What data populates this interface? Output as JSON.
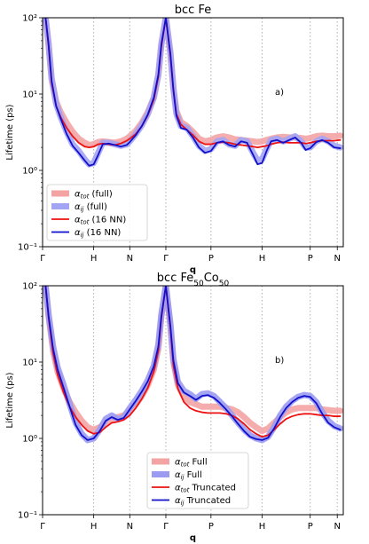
{
  "chart_data": [
    {
      "type": "line",
      "title": "bcc Fe",
      "annotation": "a)",
      "xlabel": "q",
      "ylabel": "Lifetime (ps)",
      "yscale": "log",
      "ylim": [
        0.1,
        100
      ],
      "y_tick_labels": [
        "10⁻¹",
        "10⁰",
        "10¹",
        "10²"
      ],
      "y_tick_values": [
        0.1,
        1,
        10,
        100
      ],
      "xlim": [
        0,
        10
      ],
      "x_ticks": [
        {
          "label": "Γ",
          "x": 0
        },
        {
          "label": "H",
          "x": 1.7
        },
        {
          "label": "N",
          "x": 2.9
        },
        {
          "label": "Γ",
          "x": 4.1
        },
        {
          "label": "P",
          "x": 5.6
        },
        {
          "label": "H",
          "x": 7.3
        },
        {
          "label": "P",
          "x": 8.9
        },
        {
          "label": "N",
          "x": 9.8
        }
      ],
      "grid": "vertical-dotted",
      "legend_position": "lower-left",
      "series": [
        {
          "name": "αtot (full)",
          "name_main": "α",
          "name_sub": "tot",
          "name_suffix": " (full)",
          "color": "#f4a3a3",
          "style": "thick",
          "x": [
            0.1,
            0.2,
            0.3,
            0.45,
            0.6,
            0.8,
            1.0,
            1.2,
            1.4,
            1.55,
            1.7,
            1.85,
            2.0,
            2.2,
            2.4,
            2.6,
            2.8,
            2.9,
            3.1,
            3.3,
            3.5,
            3.7,
            3.85,
            3.95,
            4.1,
            4.25,
            4.35,
            4.45,
            4.6,
            4.8,
            5.0,
            5.2,
            5.4,
            5.6,
            5.8,
            6.0,
            6.2,
            6.4,
            6.6,
            6.8,
            7.0,
            7.15,
            7.3,
            7.45,
            7.6,
            7.8,
            8.0,
            8.2,
            8.4,
            8.6,
            8.75,
            8.9,
            9.1,
            9.3,
            9.5,
            9.7,
            9.9
          ],
          "y": [
            100,
            45,
            16,
            8,
            5.8,
            4.2,
            3.2,
            2.6,
            2.3,
            2.15,
            2.2,
            2.35,
            2.4,
            2.35,
            2.3,
            2.4,
            2.6,
            2.8,
            3.3,
            4.2,
            5.8,
            9,
            18,
            45,
            100,
            35,
            12,
            6,
            4.3,
            3.8,
            3.2,
            2.6,
            2.4,
            2.5,
            2.7,
            2.8,
            2.7,
            2.55,
            2.5,
            2.45,
            2.4,
            2.35,
            2.4,
            2.5,
            2.6,
            2.7,
            2.75,
            2.7,
            2.7,
            2.65,
            2.6,
            2.65,
            2.8,
            2.85,
            2.8,
            2.8,
            2.85
          ]
        },
        {
          "name": "αij (full)",
          "name_main": "α",
          "name_sub": "ij",
          "name_suffix": " (full)",
          "color": "#a4a4f5",
          "style": "thick",
          "x": [
            0.1,
            0.2,
            0.3,
            0.45,
            0.6,
            0.8,
            1.0,
            1.2,
            1.4,
            1.55,
            1.7,
            1.85,
            2.0,
            2.2,
            2.4,
            2.6,
            2.8,
            2.9,
            3.1,
            3.3,
            3.5,
            3.7,
            3.85,
            3.95,
            4.1,
            4.25,
            4.35,
            4.45,
            4.6,
            4.8,
            5.0,
            5.2,
            5.4,
            5.6,
            5.8,
            6.0,
            6.2,
            6.4,
            6.6,
            6.8,
            7.0,
            7.15,
            7.3,
            7.45,
            7.6,
            7.8,
            8.0,
            8.2,
            8.4,
            8.6,
            8.75,
            8.9,
            9.1,
            9.3,
            9.5,
            9.7,
            9.9
          ],
          "y": [
            100,
            45,
            16,
            7.5,
            5,
            3.2,
            2.2,
            1.8,
            1.4,
            1.2,
            1.25,
            1.7,
            2.3,
            2.3,
            2.2,
            2.1,
            2.2,
            2.4,
            3,
            3.9,
            5.5,
            9,
            18,
            45,
            100,
            35,
            12,
            5.5,
            3.8,
            3.6,
            2.8,
            2.1,
            1.8,
            1.9,
            2.4,
            2.5,
            2.2,
            2.1,
            2.5,
            2.4,
            1.7,
            1.35,
            1.4,
            1.9,
            2.5,
            2.6,
            2.4,
            2.6,
            2.8,
            2.4,
            2,
            2.0,
            2.4,
            2.6,
            2.4,
            2.1,
            2.0
          ]
        },
        {
          "name": "αtot (16 NN)",
          "name_main": "α",
          "name_sub": "tot",
          "name_suffix": " (16 NN)",
          "color": "#ee1111",
          "style": "thin",
          "x": [
            0.1,
            0.2,
            0.3,
            0.45,
            0.6,
            0.8,
            1.0,
            1.2,
            1.4,
            1.55,
            1.7,
            1.85,
            2.0,
            2.2,
            2.4,
            2.6,
            2.8,
            2.9,
            3.1,
            3.3,
            3.5,
            3.7,
            3.85,
            3.95,
            4.1,
            4.25,
            4.35,
            4.45,
            4.6,
            4.8,
            5.0,
            5.2,
            5.4,
            5.6,
            5.8,
            6.0,
            6.2,
            6.4,
            6.6,
            6.8,
            7.0,
            7.15,
            7.3,
            7.45,
            7.6,
            7.8,
            8.0,
            8.2,
            8.4,
            8.6,
            8.75,
            8.9,
            9.1,
            9.3,
            9.5,
            9.7,
            9.9
          ],
          "y": [
            100,
            42,
            14,
            7,
            5,
            3.6,
            2.8,
            2.3,
            2.05,
            2.0,
            2.05,
            2.2,
            2.25,
            2.2,
            2.15,
            2.25,
            2.45,
            2.6,
            3.0,
            3.8,
            5.3,
            8.5,
            17,
            42,
            100,
            32,
            11,
            5.5,
            4.0,
            3.4,
            2.9,
            2.4,
            2.2,
            2.2,
            2.3,
            2.35,
            2.3,
            2.2,
            2.15,
            2.1,
            2.05,
            2.0,
            2.05,
            2.1,
            2.2,
            2.3,
            2.35,
            2.3,
            2.3,
            2.3,
            2.25,
            2.3,
            2.4,
            2.45,
            2.45,
            2.45,
            2.5
          ]
        },
        {
          "name": "αij (16 NN)",
          "name_main": "α",
          "name_sub": "ij",
          "name_suffix": " (16 NN)",
          "color": "#1010cc",
          "style": "thin",
          "x": [
            0.1,
            0.2,
            0.3,
            0.45,
            0.6,
            0.8,
            1.0,
            1.2,
            1.4,
            1.55,
            1.7,
            1.85,
            2.0,
            2.2,
            2.4,
            2.6,
            2.8,
            2.9,
            3.1,
            3.3,
            3.5,
            3.7,
            3.85,
            3.95,
            4.1,
            4.25,
            4.35,
            4.45,
            4.6,
            4.8,
            5.0,
            5.2,
            5.4,
            5.6,
            5.8,
            6.0,
            6.2,
            6.4,
            6.6,
            6.8,
            7.0,
            7.15,
            7.3,
            7.45,
            7.6,
            7.8,
            8.0,
            8.2,
            8.4,
            8.6,
            8.75,
            8.9,
            9.1,
            9.3,
            9.5,
            9.7,
            9.9
          ],
          "y": [
            100,
            45,
            15,
            7,
            4.8,
            3.0,
            2.1,
            1.7,
            1.35,
            1.15,
            1.2,
            1.6,
            2.2,
            2.25,
            2.15,
            2.05,
            2.15,
            2.35,
            2.9,
            3.8,
            5.4,
            9,
            18,
            45,
            100,
            34,
            11.5,
            5.2,
            3.6,
            3.4,
            2.7,
            2.0,
            1.7,
            1.8,
            2.3,
            2.4,
            2.15,
            2.05,
            2.4,
            2.3,
            1.6,
            1.2,
            1.25,
            1.8,
            2.4,
            2.5,
            2.3,
            2.5,
            2.7,
            2.3,
            1.85,
            1.95,
            2.35,
            2.5,
            2.3,
            2.0,
            1.95
          ]
        }
      ]
    },
    {
      "type": "line",
      "title": "bcc Fe50Co50",
      "title_parts": [
        "bcc Fe",
        "50",
        "Co",
        "50"
      ],
      "annotation": "b)",
      "xlabel": "q",
      "ylabel": "Lifetime (ps)",
      "yscale": "log",
      "ylim": [
        0.1,
        100
      ],
      "y_tick_labels": [
        "10⁻¹",
        "10⁰",
        "10¹",
        "10²"
      ],
      "y_tick_values": [
        0.1,
        1,
        10,
        100
      ],
      "xlim": [
        0,
        10
      ],
      "x_ticks": [
        {
          "label": "Γ",
          "x": 0
        },
        {
          "label": "H",
          "x": 1.7
        },
        {
          "label": "N",
          "x": 2.9
        },
        {
          "label": "Γ",
          "x": 4.1
        },
        {
          "label": "P",
          "x": 5.6
        },
        {
          "label": "H",
          "x": 7.3
        },
        {
          "label": "P",
          "x": 8.9
        },
        {
          "label": "N",
          "x": 9.8
        }
      ],
      "grid": "vertical-dotted",
      "legend_position": "lower-center",
      "series": [
        {
          "name": "αtot Full",
          "name_main": "α",
          "name_sub": "tot",
          "name_suffix": " Full",
          "color": "#f4a3a3",
          "style": "thick",
          "x": [
            0.1,
            0.2,
            0.35,
            0.5,
            0.7,
            0.9,
            1.1,
            1.3,
            1.5,
            1.7,
            1.9,
            2.1,
            2.3,
            2.5,
            2.7,
            2.9,
            3.1,
            3.3,
            3.5,
            3.7,
            3.85,
            3.95,
            4.1,
            4.25,
            4.35,
            4.5,
            4.7,
            4.9,
            5.1,
            5.3,
            5.5,
            5.7,
            5.9,
            6.1,
            6.3,
            6.5,
            6.7,
            6.9,
            7.1,
            7.3,
            7.5,
            7.7,
            7.9,
            8.1,
            8.3,
            8.5,
            8.7,
            8.9,
            9.1,
            9.3,
            9.5,
            9.7,
            9.9
          ],
          "y": [
            100,
            40,
            14,
            7.5,
            4.5,
            3.0,
            2.2,
            1.7,
            1.4,
            1.3,
            1.4,
            1.6,
            1.8,
            1.9,
            2.0,
            2.3,
            2.8,
            3.6,
            5.0,
            8.0,
            15,
            40,
            100,
            30,
            10,
            5,
            3.5,
            3.0,
            2.8,
            2.6,
            2.6,
            2.6,
            2.6,
            2.5,
            2.4,
            2.2,
            1.9,
            1.6,
            1.4,
            1.25,
            1.35,
            1.6,
            1.9,
            2.2,
            2.4,
            2.5,
            2.5,
            2.5,
            2.5,
            2.4,
            2.35,
            2.3,
            2.3
          ]
        },
        {
          "name": "αij Full",
          "name_main": "α",
          "name_sub": "ij",
          "name_suffix": " Full",
          "color": "#9b9bf2",
          "style": "thick",
          "x": [
            0.1,
            0.2,
            0.35,
            0.5,
            0.7,
            0.9,
            1.1,
            1.3,
            1.5,
            1.7,
            1.9,
            2.1,
            2.3,
            2.5,
            2.7,
            2.9,
            3.1,
            3.3,
            3.5,
            3.7,
            3.85,
            3.95,
            4.1,
            4.25,
            4.35,
            4.5,
            4.7,
            4.9,
            5.1,
            5.3,
            5.5,
            5.7,
            5.9,
            6.1,
            6.3,
            6.5,
            6.7,
            6.9,
            7.1,
            7.3,
            7.5,
            7.7,
            7.9,
            8.1,
            8.3,
            8.5,
            8.7,
            8.9,
            9.1,
            9.3,
            9.5,
            9.7,
            9.9
          ],
          "y": [
            100,
            42,
            16,
            8.5,
            5,
            2.8,
            1.6,
            1.15,
            0.95,
            1.0,
            1.3,
            1.8,
            2.0,
            1.8,
            1.9,
            2.5,
            3.2,
            4.2,
            5.8,
            9,
            17,
            42,
            100,
            32,
            11,
            5.5,
            4.2,
            3.8,
            3.3,
            3.8,
            3.9,
            3.6,
            3.0,
            2.5,
            2.0,
            1.6,
            1.3,
            1.1,
            1.0,
            0.95,
            1.05,
            1.4,
            2.0,
            2.6,
            3.1,
            3.5,
            3.7,
            3.6,
            3.0,
            2.2,
            1.7,
            1.45,
            1.35
          ]
        },
        {
          "name": "αtot Truncated",
          "name_main": "α",
          "name_sub": "tot",
          "name_suffix": " Truncated",
          "color": "#ee1111",
          "style": "thin",
          "x": [
            0.1,
            0.2,
            0.35,
            0.5,
            0.7,
            0.9,
            1.1,
            1.3,
            1.5,
            1.7,
            1.9,
            2.1,
            2.3,
            2.5,
            2.7,
            2.9,
            3.1,
            3.3,
            3.5,
            3.7,
            3.85,
            3.95,
            4.1,
            4.25,
            4.35,
            4.5,
            4.7,
            4.9,
            5.1,
            5.3,
            5.5,
            5.7,
            5.9,
            6.1,
            6.3,
            6.5,
            6.7,
            6.9,
            7.1,
            7.3,
            7.5,
            7.7,
            7.9,
            8.1,
            8.3,
            8.5,
            8.7,
            8.9,
            9.1,
            9.3,
            9.5,
            9.7,
            9.9
          ],
          "y": [
            100,
            38,
            13,
            6.8,
            4.0,
            2.6,
            1.9,
            1.5,
            1.25,
            1.15,
            1.2,
            1.4,
            1.6,
            1.65,
            1.75,
            2.0,
            2.5,
            3.3,
            4.6,
            7.5,
            14,
            38,
            100,
            28,
            9,
            4.5,
            3.0,
            2.5,
            2.3,
            2.2,
            2.15,
            2.15,
            2.15,
            2.1,
            2.0,
            1.8,
            1.55,
            1.3,
            1.15,
            1.05,
            1.1,
            1.3,
            1.55,
            1.8,
            1.95,
            2.05,
            2.1,
            2.1,
            2.05,
            2.0,
            2.0,
            1.95,
            1.95
          ]
        },
        {
          "name": "αij Truncated",
          "name_main": "α",
          "name_sub": "ij",
          "name_suffix": " Truncated",
          "color": "#1010cc",
          "style": "thin",
          "x": [
            0.1,
            0.2,
            0.35,
            0.5,
            0.7,
            0.9,
            1.1,
            1.3,
            1.5,
            1.7,
            1.9,
            2.1,
            2.3,
            2.5,
            2.7,
            2.9,
            3.1,
            3.3,
            3.5,
            3.7,
            3.85,
            3.95,
            4.1,
            4.25,
            4.35,
            4.5,
            4.7,
            4.9,
            5.1,
            5.3,
            5.5,
            5.7,
            5.9,
            6.1,
            6.3,
            6.5,
            6.7,
            6.9,
            7.1,
            7.3,
            7.5,
            7.7,
            7.9,
            8.1,
            8.3,
            8.5,
            8.7,
            8.9,
            9.1,
            9.3,
            9.5,
            9.7,
            9.9
          ],
          "y": [
            100,
            40,
            15,
            8,
            4.6,
            2.6,
            1.5,
            1.1,
            0.95,
            1.0,
            1.25,
            1.7,
            1.9,
            1.75,
            1.85,
            2.4,
            3.1,
            4.1,
            5.6,
            8.8,
            16,
            40,
            100,
            30,
            10.5,
            5.3,
            4.0,
            3.6,
            3.2,
            3.6,
            3.7,
            3.4,
            2.9,
            2.4,
            1.95,
            1.55,
            1.25,
            1.05,
            0.98,
            0.95,
            1.02,
            1.35,
            1.9,
            2.5,
            3.0,
            3.4,
            3.6,
            3.5,
            2.9,
            2.1,
            1.6,
            1.4,
            1.3
          ]
        }
      ]
    }
  ]
}
